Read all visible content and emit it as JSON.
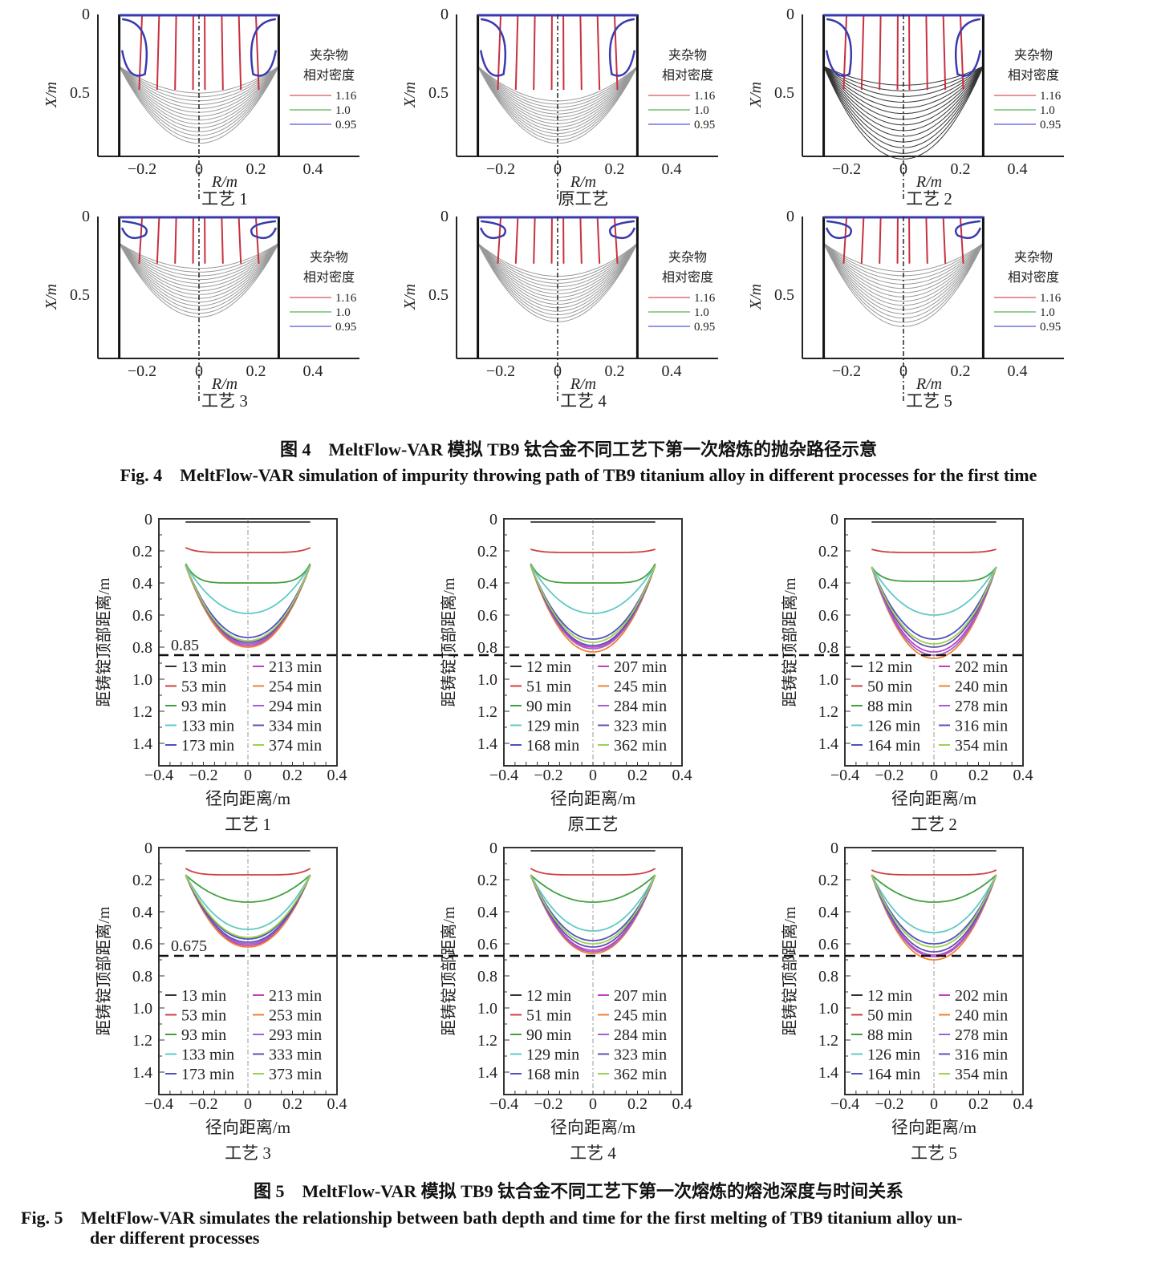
{
  "figure4": {
    "caption_cn": "图 4　MeltFlow-VAR 模拟 TB9 钛合金不同工艺下第一次熔炼的抛杂路径示意",
    "caption_en": "Fig. 4　MeltFlow-VAR simulation of impurity throwing path of TB9 titanium alloy in different processes for the first time",
    "xlabel": "R/m",
    "ylabel": "X/m",
    "xticks": [
      "−0.2",
      "0",
      "0.2",
      "0.4"
    ],
    "yticks": [
      "0",
      "0.5"
    ],
    "legend_title": [
      "夹杂物",
      "相对密度"
    ],
    "legend": [
      {
        "label": "1.16",
        "color": "#e07070"
      },
      {
        "label": "1.0",
        "color": "#70c070"
      },
      {
        "label": "0.95",
        "color": "#7070e0"
      }
    ],
    "panels": [
      {
        "title": "工艺 1",
        "pool_depth_range": [
          0.5,
          0.82
        ]
      },
      {
        "title": "原工艺",
        "pool_depth_range": [
          0.55,
          0.82
        ]
      },
      {
        "title": "工艺 2",
        "pool_depth_range": [
          0.45,
          0.92
        ]
      },
      {
        "title": "工艺 3",
        "pool_depth_range": [
          0.33,
          0.64
        ]
      },
      {
        "title": "工艺 4",
        "pool_depth_range": [
          0.38,
          0.67
        ]
      },
      {
        "title": "工艺 5",
        "pool_depth_range": [
          0.35,
          0.7
        ]
      }
    ]
  },
  "figure5": {
    "caption_cn": "图 5　MeltFlow-VAR 模拟 TB9 钛合金不同工艺下第一次熔炼的熔池深度与时间关系",
    "caption_en_1": "Fig. 5　MeltFlow-VAR simulates the relationship between bath depth and time for the first melting of TB9 titanium alloy un-",
    "caption_en_2": "der different processes"
  },
  "chart_data": [
    {
      "type": "line",
      "title": "工艺 1",
      "xlabel": "径向距离/m",
      "ylabel": "距铸锭顶部距离/m",
      "xlim": [
        -0.4,
        0.4
      ],
      "ylim": [
        1.54,
        0
      ],
      "y_inverted": true,
      "xticks": [
        "−0.4",
        "−0.2",
        "0",
        "0.2",
        "0.4"
      ],
      "yticks": [
        "0",
        "0.2",
        "0.4",
        "0.6",
        "0.8",
        "1.0",
        "1.2",
        "1.4"
      ],
      "reference_line": {
        "value": 0.85,
        "label": "0.85"
      },
      "series": [
        {
          "name": "13 min",
          "center_depth": 0.02,
          "edge_depth": 0.02,
          "color": "#333333"
        },
        {
          "name": "53 min",
          "center_depth": 0.21,
          "edge_depth": 0.18,
          "color": "#d04040"
        },
        {
          "name": "93 min",
          "center_depth": 0.4,
          "edge_depth": 0.28,
          "color": "#40a040"
        },
        {
          "name": "133 min",
          "center_depth": 0.59,
          "edge_depth": 0.29,
          "color": "#60c8c8"
        },
        {
          "name": "173 min",
          "center_depth": 0.74,
          "edge_depth": 0.29,
          "color": "#5050c0"
        },
        {
          "name": "213 min",
          "center_depth": 0.79,
          "edge_depth": 0.29,
          "color": "#c040c0"
        },
        {
          "name": "254 min",
          "center_depth": 0.8,
          "edge_depth": 0.29,
          "color": "#f08030"
        },
        {
          "name": "294 min",
          "center_depth": 0.78,
          "edge_depth": 0.29,
          "color": "#a060d0"
        },
        {
          "name": "334 min",
          "center_depth": 0.77,
          "edge_depth": 0.29,
          "color": "#6050b0"
        },
        {
          "name": "374 min",
          "center_depth": 0.76,
          "edge_depth": 0.29,
          "color": "#a0d050"
        }
      ]
    },
    {
      "type": "line",
      "title": "原工艺",
      "xlabel": "径向距离/m",
      "ylabel": "距铸锭顶部距离/m",
      "xlim": [
        -0.4,
        0.4
      ],
      "ylim": [
        1.54,
        0
      ],
      "y_inverted": true,
      "xticks": [
        "−0.4",
        "−0.2",
        "0",
        "0.2",
        "0.4"
      ],
      "yticks": [
        "0",
        "0.2",
        "0.4",
        "0.6",
        "0.8",
        "1.0",
        "1.2",
        "1.4"
      ],
      "series": [
        {
          "name": "12 min",
          "center_depth": 0.02,
          "edge_depth": 0.02,
          "color": "#333333"
        },
        {
          "name": "51 min",
          "center_depth": 0.21,
          "edge_depth": 0.19,
          "color": "#d04040"
        },
        {
          "name": "90 min",
          "center_depth": 0.4,
          "edge_depth": 0.28,
          "color": "#40a040"
        },
        {
          "name": "129 min",
          "center_depth": 0.59,
          "edge_depth": 0.29,
          "color": "#60c8c8"
        },
        {
          "name": "168 min",
          "center_depth": 0.75,
          "edge_depth": 0.29,
          "color": "#5050c0"
        },
        {
          "name": "207 min",
          "center_depth": 0.8,
          "edge_depth": 0.29,
          "color": "#c040c0"
        },
        {
          "name": "245 min",
          "center_depth": 0.83,
          "edge_depth": 0.29,
          "color": "#f08030"
        },
        {
          "name": "284 min",
          "center_depth": 0.81,
          "edge_depth": 0.29,
          "color": "#a060d0"
        },
        {
          "name": "323 min",
          "center_depth": 0.79,
          "edge_depth": 0.29,
          "color": "#6050b0"
        },
        {
          "name": "362 min",
          "center_depth": 0.77,
          "edge_depth": 0.29,
          "color": "#a0d050"
        }
      ]
    },
    {
      "type": "line",
      "title": "工艺 2",
      "xlabel": "径向距离/m",
      "ylabel": "距铸锭顶部距离/m",
      "xlim": [
        -0.4,
        0.4
      ],
      "ylim": [
        1.54,
        0
      ],
      "y_inverted": true,
      "xticks": [
        "−0.4",
        "−0.2",
        "0",
        "0.2",
        "0.4"
      ],
      "yticks": [
        "0",
        "0.2",
        "0.4",
        "0.6",
        "0.8",
        "1.0",
        "1.2",
        "1.4"
      ],
      "series": [
        {
          "name": "12 min",
          "center_depth": 0.02,
          "edge_depth": 0.02,
          "color": "#333333"
        },
        {
          "name": "50 min",
          "center_depth": 0.21,
          "edge_depth": 0.19,
          "color": "#d04040"
        },
        {
          "name": "88 min",
          "center_depth": 0.39,
          "edge_depth": 0.3,
          "color": "#40a040"
        },
        {
          "name": "126 min",
          "center_depth": 0.6,
          "edge_depth": 0.3,
          "color": "#60c8c8"
        },
        {
          "name": "164 min",
          "center_depth": 0.75,
          "edge_depth": 0.3,
          "color": "#5050c0"
        },
        {
          "name": "202 min",
          "center_depth": 0.83,
          "edge_depth": 0.3,
          "color": "#c040c0"
        },
        {
          "name": "240 min",
          "center_depth": 0.87,
          "edge_depth": 0.3,
          "color": "#f08030"
        },
        {
          "name": "278 min",
          "center_depth": 0.85,
          "edge_depth": 0.3,
          "color": "#a060d0"
        },
        {
          "name": "316 min",
          "center_depth": 0.8,
          "edge_depth": 0.3,
          "color": "#6050b0"
        },
        {
          "name": "354 min",
          "center_depth": 0.78,
          "edge_depth": 0.3,
          "color": "#a0d050"
        }
      ]
    },
    {
      "type": "line",
      "title": "工艺 3",
      "xlabel": "径向距离/m",
      "ylabel": "距铸锭顶部距离/m",
      "xlim": [
        -0.4,
        0.4
      ],
      "ylim": [
        1.54,
        0
      ],
      "y_inverted": true,
      "xticks": [
        "−0.4",
        "−0.2",
        "0",
        "0.2",
        "0.4"
      ],
      "yticks": [
        "0",
        "0.2",
        "0.4",
        "0.6",
        "0.8",
        "1.0",
        "1.2",
        "1.4"
      ],
      "reference_line": {
        "value": 0.675,
        "label": "0.675"
      },
      "series": [
        {
          "name": "13 min",
          "center_depth": 0.02,
          "edge_depth": 0.02,
          "color": "#333333"
        },
        {
          "name": "53 min",
          "center_depth": 0.17,
          "edge_depth": 0.13,
          "color": "#d04040"
        },
        {
          "name": "93 min",
          "center_depth": 0.34,
          "edge_depth": 0.17,
          "color": "#40a040"
        },
        {
          "name": "133 min",
          "center_depth": 0.51,
          "edge_depth": 0.17,
          "color": "#60c8c8"
        },
        {
          "name": "173 min",
          "center_depth": 0.57,
          "edge_depth": 0.17,
          "color": "#5050c0"
        },
        {
          "name": "213 min",
          "center_depth": 0.61,
          "edge_depth": 0.17,
          "color": "#c040c0"
        },
        {
          "name": "253 min",
          "center_depth": 0.62,
          "edge_depth": 0.17,
          "color": "#f08030"
        },
        {
          "name": "293 min",
          "center_depth": 0.6,
          "edge_depth": 0.17,
          "color": "#a060d0"
        },
        {
          "name": "333 min",
          "center_depth": 0.59,
          "edge_depth": 0.17,
          "color": "#6050b0"
        },
        {
          "name": "373 min",
          "center_depth": 0.56,
          "edge_depth": 0.17,
          "color": "#a0d050"
        }
      ]
    },
    {
      "type": "line",
      "title": "工艺 4",
      "xlabel": "径向距离/m",
      "ylabel": "距铸锭顶部距离/m",
      "xlim": [
        -0.4,
        0.4
      ],
      "ylim": [
        1.54,
        0
      ],
      "y_inverted": true,
      "xticks": [
        "−0.4",
        "−0.2",
        "0",
        "0.2",
        "0.4"
      ],
      "yticks": [
        "0",
        "0.2",
        "0.4",
        "0.6",
        "0.8",
        "1.0",
        "1.2",
        "1.4"
      ],
      "series": [
        {
          "name": "12 min",
          "center_depth": 0.02,
          "edge_depth": 0.02,
          "color": "#333333"
        },
        {
          "name": "51 min",
          "center_depth": 0.17,
          "edge_depth": 0.13,
          "color": "#d04040"
        },
        {
          "name": "90 min",
          "center_depth": 0.34,
          "edge_depth": 0.17,
          "color": "#40a040"
        },
        {
          "name": "129 min",
          "center_depth": 0.52,
          "edge_depth": 0.17,
          "color": "#60c8c8"
        },
        {
          "name": "168 min",
          "center_depth": 0.58,
          "edge_depth": 0.17,
          "color": "#5050c0"
        },
        {
          "name": "207 min",
          "center_depth": 0.64,
          "edge_depth": 0.17,
          "color": "#c040c0"
        },
        {
          "name": "245 min",
          "center_depth": 0.66,
          "edge_depth": 0.17,
          "color": "#f08030"
        },
        {
          "name": "284 min",
          "center_depth": 0.65,
          "edge_depth": 0.17,
          "color": "#a060d0"
        },
        {
          "name": "323 min",
          "center_depth": 0.62,
          "edge_depth": 0.17,
          "color": "#6050b0"
        },
        {
          "name": "362 min",
          "center_depth": 0.6,
          "edge_depth": 0.17,
          "color": "#a0d050"
        }
      ]
    },
    {
      "type": "line",
      "title": "工艺 5",
      "xlabel": "径向距离/m",
      "ylabel": "距铸锭顶部距离/m",
      "xlim": [
        -0.4,
        0.4
      ],
      "ylim": [
        1.54,
        0
      ],
      "y_inverted": true,
      "xticks": [
        "−0.4",
        "−0.2",
        "0",
        "0.2",
        "0.4"
      ],
      "yticks": [
        "0",
        "0.2",
        "0.4",
        "0.6",
        "0.8",
        "1.0",
        "1.2",
        "1.4"
      ],
      "series": [
        {
          "name": "12 min",
          "center_depth": 0.02,
          "edge_depth": 0.02,
          "color": "#333333"
        },
        {
          "name": "50 min",
          "center_depth": 0.17,
          "edge_depth": 0.14,
          "color": "#d04040"
        },
        {
          "name": "88 min",
          "center_depth": 0.34,
          "edge_depth": 0.17,
          "color": "#40a040"
        },
        {
          "name": "126 min",
          "center_depth": 0.53,
          "edge_depth": 0.17,
          "color": "#60c8c8"
        },
        {
          "name": "164 min",
          "center_depth": 0.6,
          "edge_depth": 0.17,
          "color": "#5050c0"
        },
        {
          "name": "202 min",
          "center_depth": 0.67,
          "edge_depth": 0.17,
          "color": "#c040c0"
        },
        {
          "name": "240 min",
          "center_depth": 0.7,
          "edge_depth": 0.17,
          "color": "#f08030"
        },
        {
          "name": "278 min",
          "center_depth": 0.68,
          "edge_depth": 0.17,
          "color": "#a060d0"
        },
        {
          "name": "316 min",
          "center_depth": 0.65,
          "edge_depth": 0.17,
          "color": "#6050b0"
        },
        {
          "name": "354 min",
          "center_depth": 0.62,
          "edge_depth": 0.17,
          "color": "#a0d050"
        }
      ]
    }
  ]
}
